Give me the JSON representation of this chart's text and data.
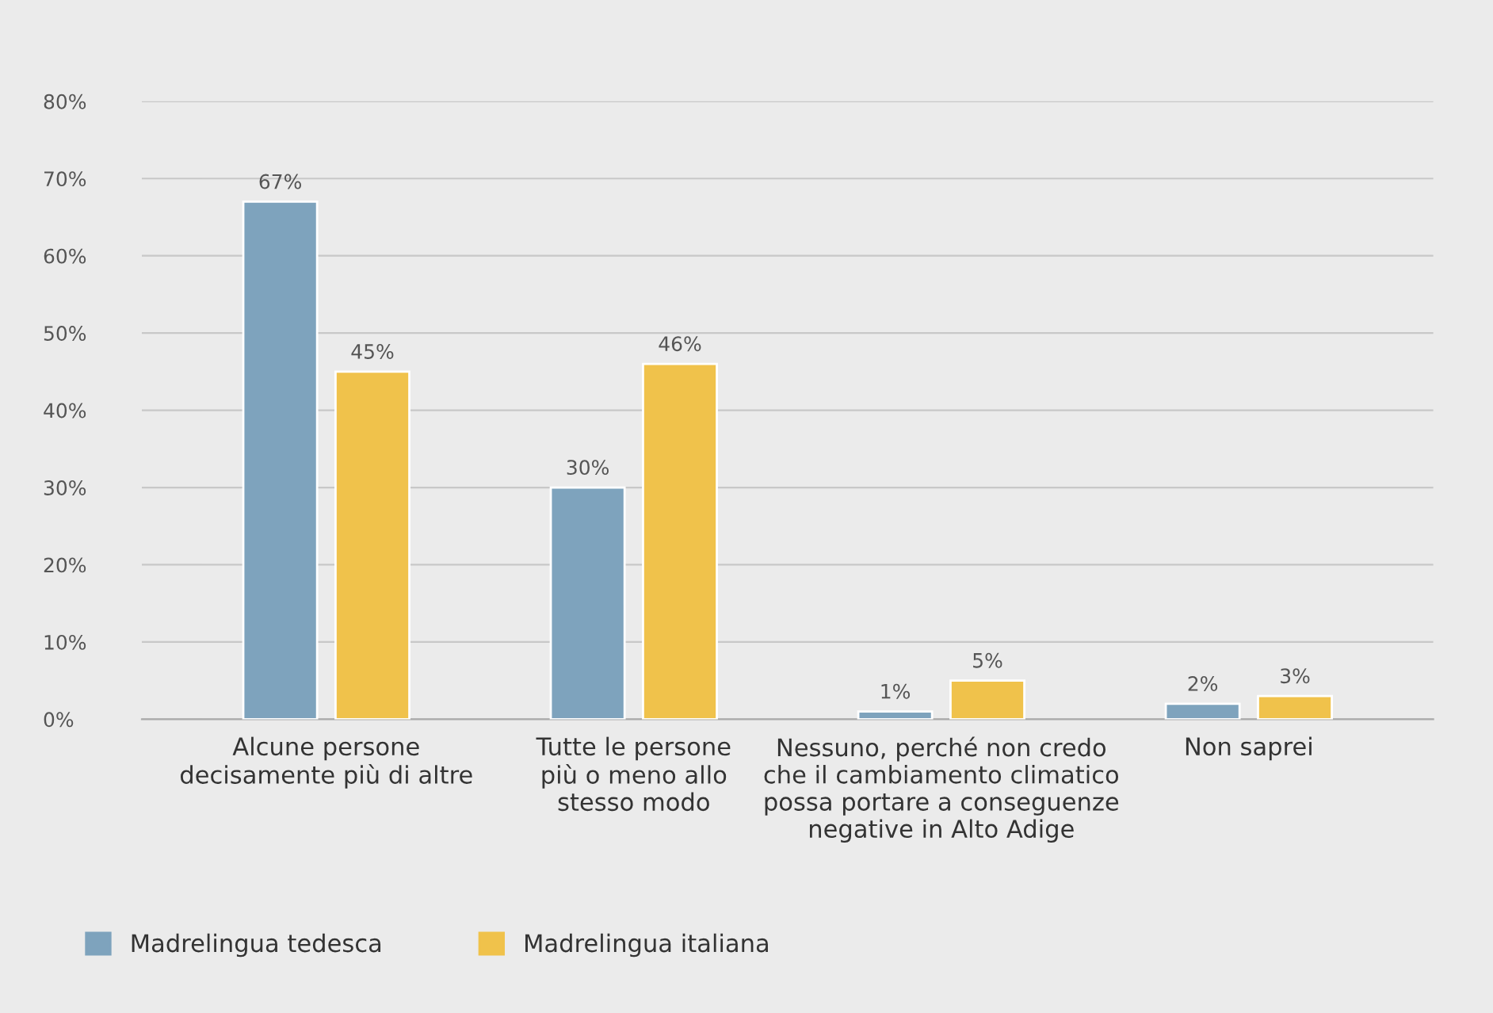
{
  "chart_data": {
    "type": "bar",
    "categories": [
      "Alcune persone\ndecisamente più di altre",
      "Tutte le persone\npiù o meno allo\nstesso modo",
      "Nessuno, perché non credo\nche il cambiamento climatico\npossa portare a conseguenze\nnegative in Alto Adige",
      "Non saprei"
    ],
    "series": [
      {
        "name": "Madrelingua tedesca",
        "color": "#7ea3bd",
        "values": [
          67,
          30,
          1,
          2
        ],
        "value_labels": [
          "67%",
          "30%",
          "1%",
          "2%"
        ]
      },
      {
        "name": "Madrelingua italiana",
        "color": "#f0c24b",
        "values": [
          45,
          46,
          5,
          3
        ],
        "value_labels": [
          "45%",
          "46%",
          "5%",
          "3%"
        ]
      }
    ],
    "ylim": [
      0,
      80
    ],
    "yticks": [
      {
        "value": 0,
        "label": "0%"
      },
      {
        "value": 10,
        "label": "10%"
      },
      {
        "value": 20,
        "label": "20%"
      },
      {
        "value": 30,
        "label": "30%"
      },
      {
        "value": 40,
        "label": "40%"
      },
      {
        "value": 50,
        "label": "50%"
      },
      {
        "value": 60,
        "label": "60%"
      },
      {
        "value": 70,
        "label": "70%"
      },
      {
        "value": 80,
        "label": "80%"
      }
    ],
    "grid": "y",
    "legend": "bottom left"
  }
}
